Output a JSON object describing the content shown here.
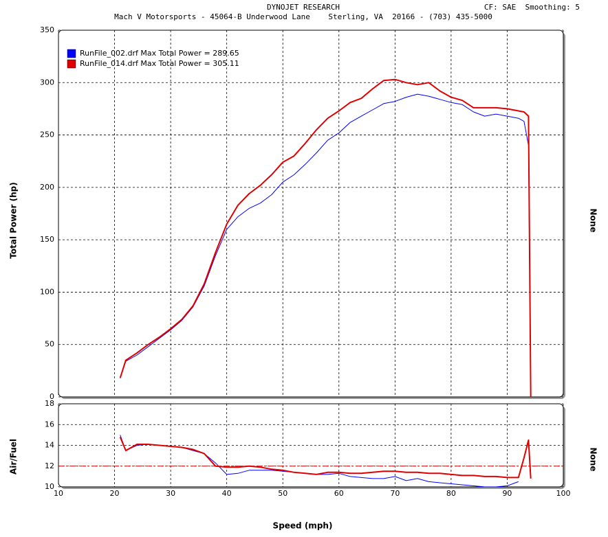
{
  "header": {
    "title": "DYNOJET RESEARCH",
    "address": "Mach V Motorsports - 45064-B Underwood Lane    Sterling, VA  20166 - (703) 435-5000",
    "settings": "CF: SAE  Smoothing: 5"
  },
  "chart_data": [
    {
      "type": "line",
      "y_label": "Total Power (hp)",
      "y2_label": "None",
      "grid": true,
      "xlim": [
        10,
        100
      ],
      "ylim": [
        0,
        350
      ],
      "yticks": [
        0,
        50,
        100,
        150,
        200,
        250,
        300,
        350
      ],
      "x": [
        21,
        22,
        24,
        26,
        28,
        30,
        32,
        34,
        36,
        38,
        40,
        42,
        44,
        46,
        48,
        50,
        52,
        54,
        56,
        58,
        60,
        62,
        64,
        66,
        68,
        70,
        72,
        74,
        76,
        78,
        80,
        82,
        84,
        86,
        88,
        90,
        92,
        93,
        93.8,
        94.2
      ],
      "series": [
        {
          "name": "RunFile_002.drf Max Total Power = 289.65",
          "color": "#0000ff",
          "values": [
            18,
            34,
            40,
            48,
            56,
            64,
            73,
            86,
            106,
            135,
            160,
            172,
            180,
            185,
            193,
            205,
            212,
            222,
            233,
            245,
            252,
            262,
            268,
            274,
            280,
            282,
            286,
            289,
            287,
            284,
            281,
            279,
            272,
            268,
            270,
            268,
            266,
            263,
            240,
            0
          ]
        },
        {
          "name": "RunFile_014.drf Max Total Power = 305.11",
          "color": "#e00000",
          "values": [
            18,
            35,
            42,
            50,
            57,
            65,
            74,
            87,
            108,
            138,
            165,
            183,
            194,
            202,
            212,
            224,
            230,
            242,
            255,
            266,
            273,
            281,
            285,
            294,
            302,
            303,
            300,
            298,
            300,
            292,
            286,
            283,
            276,
            276,
            276,
            275,
            273,
            272,
            268,
            0
          ]
        }
      ]
    },
    {
      "type": "line",
      "y_label": "Air/Fuel",
      "y2_label": "None",
      "x_label": "Speed (mph)",
      "grid": true,
      "xlim": [
        10,
        100
      ],
      "xticks": [
        10,
        20,
        30,
        40,
        50,
        60,
        70,
        80,
        90,
        100
      ],
      "ylim": [
        10,
        18
      ],
      "yticks": [
        10,
        12,
        14,
        16,
        18
      ],
      "ref_line": 12,
      "x": [
        21,
        22,
        24,
        26,
        28,
        30,
        32,
        34,
        36,
        38,
        40,
        42,
        44,
        46,
        48,
        50,
        52,
        54,
        56,
        58,
        60,
        62,
        64,
        66,
        68,
        70,
        72,
        74,
        76,
        78,
        80,
        82,
        84,
        86,
        88,
        90,
        92,
        93,
        93.8,
        94.2
      ],
      "series": [
        {
          "color": "#0000ff",
          "values": [
            15,
            13.5,
            14,
            14.1,
            14,
            13.9,
            13.8,
            13.5,
            13.2,
            12.3,
            11.2,
            11.3,
            11.6,
            11.6,
            11.6,
            11.5,
            11.4,
            11.3,
            11.2,
            11.2,
            11.3,
            11.0,
            10.9,
            10.8,
            10.8,
            11.0,
            10.6,
            10.8,
            10.5,
            10.4,
            10.3,
            10.2,
            10.1,
            10,
            10,
            10.1,
            10.5,
            null,
            null,
            null
          ]
        },
        {
          "color": "#e00000",
          "values": [
            14.8,
            13.5,
            14.1,
            14.1,
            14,
            13.9,
            13.8,
            13.6,
            13.2,
            12.0,
            11.9,
            11.9,
            12.0,
            11.9,
            11.7,
            11.6,
            11.4,
            11.3,
            11.2,
            11.4,
            11.4,
            11.3,
            11.3,
            11.4,
            11.5,
            11.5,
            11.4,
            11.4,
            11.3,
            11.3,
            11.2,
            11.1,
            11.1,
            11,
            11,
            10.9,
            10.9,
            12.8,
            14.5,
            10.8
          ]
        }
      ]
    }
  ]
}
